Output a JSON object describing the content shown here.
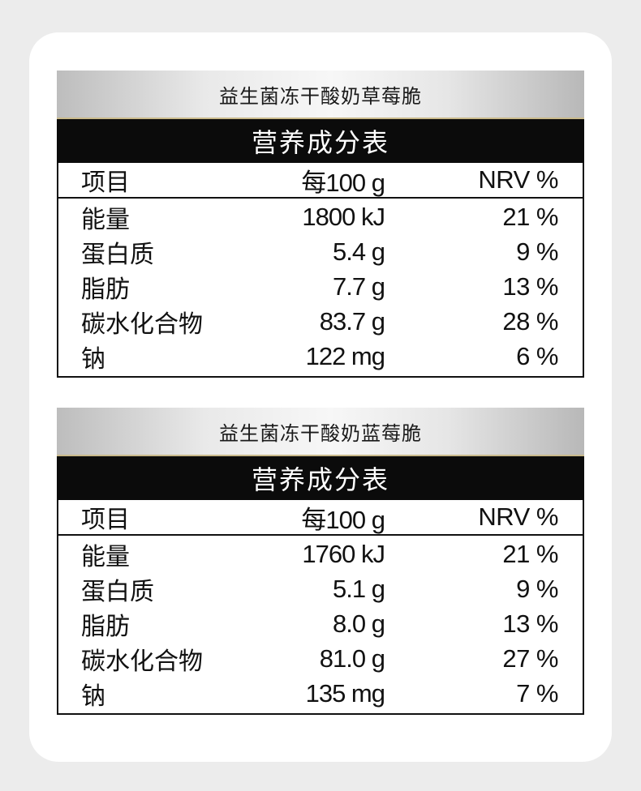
{
  "tables": [
    {
      "product_name": "益生菌冻干酸奶草莓脆",
      "title": "营养成分表",
      "columns": {
        "item": "项目",
        "per100g": "每100 g",
        "nrv": "NRV %"
      },
      "rows": [
        {
          "name": "能量",
          "amount": "1800 kJ",
          "nrv": "21 %"
        },
        {
          "name": "蛋白质",
          "amount": "5.4 g",
          "nrv": "9 %"
        },
        {
          "name": "脂肪",
          "amount": "7.7 g",
          "nrv": "13 %"
        },
        {
          "name": "碳水化合物",
          "amount": "83.7 g",
          "nrv": "28 %"
        },
        {
          "name": "钠",
          "amount": "122 mg",
          "nrv": "6 %"
        }
      ]
    },
    {
      "product_name": "益生菌冻干酸奶蓝莓脆",
      "title": "营养成分表",
      "columns": {
        "item": "项目",
        "per100g": "每100 g",
        "nrv": "NRV %"
      },
      "rows": [
        {
          "name": "能量",
          "amount": "1760 kJ",
          "nrv": "21 %"
        },
        {
          "name": "蛋白质",
          "amount": "5.1 g",
          "nrv": "9 %"
        },
        {
          "name": "脂肪",
          "amount": "8.0 g",
          "nrv": "13 %"
        },
        {
          "name": "碳水化合物",
          "amount": "81.0 g",
          "nrv": "27 %"
        },
        {
          "name": "钠",
          "amount": "135 mg",
          "nrv": "7 %"
        }
      ]
    }
  ],
  "colors": {
    "background": "#ececec",
    "card": "#ffffff",
    "title_bar": "#0b0b0b",
    "header_gradient_edge": "#bdbdbd",
    "header_gradient_center": "#f7f7f7"
  }
}
